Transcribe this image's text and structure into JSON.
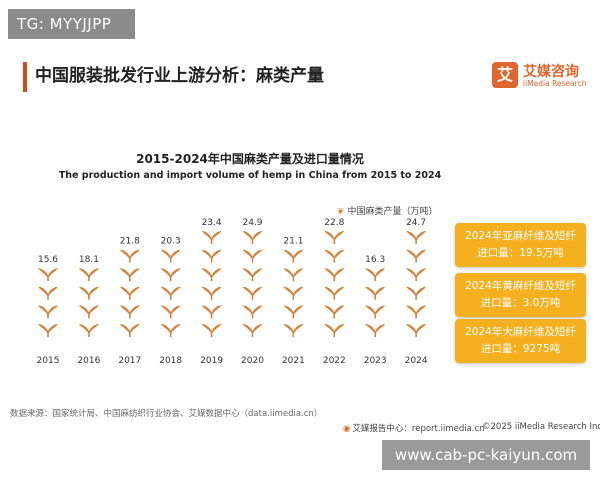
{
  "tag": "TG: MYYJJPP",
  "header": {
    "title": "中国服装批发行业上游分析：麻类产量",
    "brand_logo_char": "艾",
    "brand_cn": "艾媒咨询",
    "brand_en": "iiMedia Research",
    "accent_color": "#d64a1f",
    "brand_color": "#e0662e"
  },
  "chart_data": {
    "type": "bar",
    "title": "2015-2024年中国麻类产量及进口量情况",
    "subtitle": "The production and import volume of hemp in China from 2015 to 2024",
    "categories": [
      "2015",
      "2016",
      "2017",
      "2018",
      "2019",
      "2020",
      "2021",
      "2022",
      "2023",
      "2024"
    ],
    "series": [
      {
        "name": "中国麻类产量（万吨）",
        "values": [
          15.6,
          18.1,
          21.8,
          20.3,
          23.4,
          24.9,
          21.1,
          22.8,
          16.3,
          24.7
        ]
      }
    ],
    "value_labels": [
      "15.6",
      "18.1",
      "21.8",
      "20.3",
      "23.4",
      "24.9",
      "21.1",
      "22.8",
      "16.3",
      "24.7"
    ],
    "ylim": [
      0,
      26
    ],
    "mark_style": "pictograph-sprouts",
    "mark_color": "#d2843e",
    "grid": false,
    "legend_position": "top-right"
  },
  "legend_icon": "sprout-icon",
  "cards": [
    {
      "line1": "2024年亚麻纤维及短纤",
      "line2": "进口量：19.5万吨"
    },
    {
      "line1": "2024年黄麻纤维及短纤",
      "line2": "进口量：3.0万吨"
    },
    {
      "line1": "2024年大麻纤维及短纤",
      "line2": "进口量：9275吨"
    }
  ],
  "card_color": "#f5b020",
  "footer": {
    "source": "数据来源：国家统计局、中国麻纺织行业协会、艾媒数据中心（data.iimedia.cn）",
    "report": "艾媒报告中心：report.iimedia.cn",
    "copyright": "©2025  iiMedia Research  Inc"
  },
  "watermark": "www.cab-pc-kaiyun.com"
}
